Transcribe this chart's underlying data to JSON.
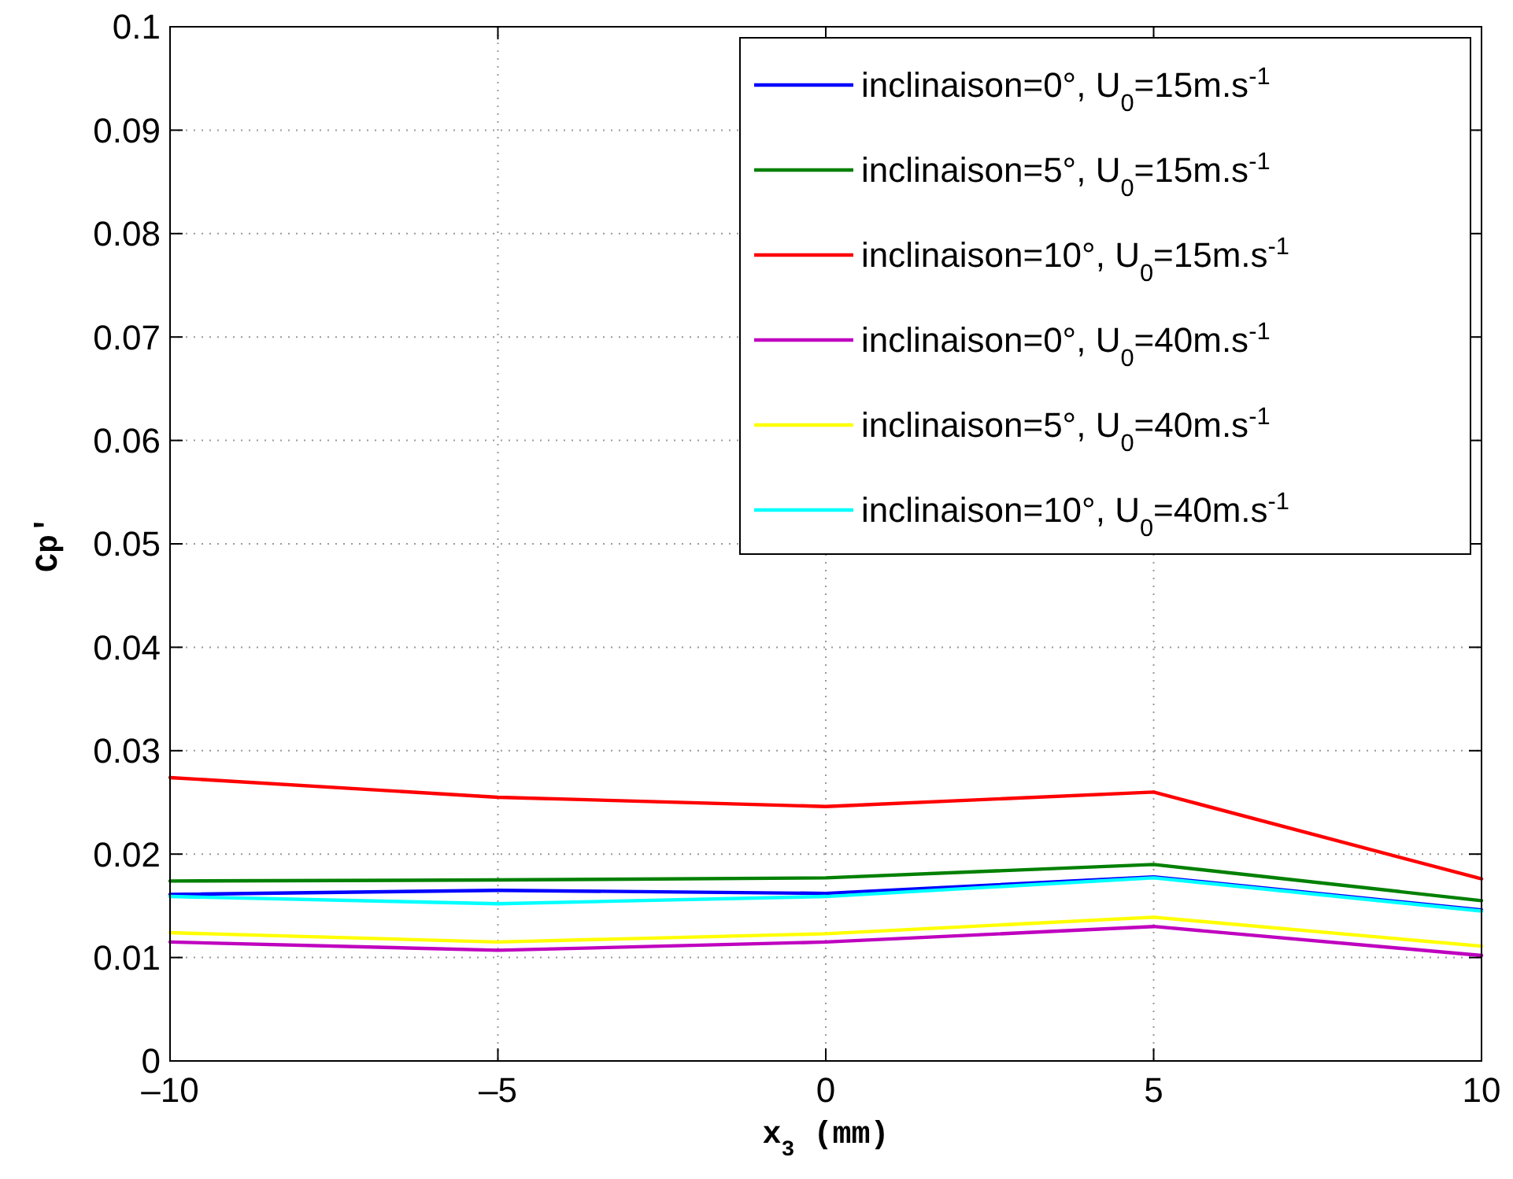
{
  "chart_data": {
    "type": "line",
    "xlabel": "x$_{3}$ (mm)",
    "ylabel": "Cp′",
    "x": [
      -10,
      -5,
      0,
      5,
      10
    ],
    "series": [
      {
        "name": "inclinaison=0°, U$_{0}$=15m.s$^{-1}$",
        "color": "#0000ff",
        "values": [
          0.0161,
          0.0165,
          0.0162,
          0.0178,
          0.0146
        ]
      },
      {
        "name": "inclinaison=5°, U$_{0}$=15m.s$^{-1}$",
        "color": "#008000",
        "values": [
          0.0174,
          0.0175,
          0.0177,
          0.019,
          0.0155
        ]
      },
      {
        "name": "inclinaison=10°, U$_{0}$=15m.s$^{-1}$",
        "color": "#ff0000",
        "values": [
          0.0274,
          0.0255,
          0.0246,
          0.026,
          0.0176
        ]
      },
      {
        "name": "inclinaison=0°, U$_{0}$=40m.s$^{-1}$",
        "color": "#bf00bf",
        "values": [
          0.0115,
          0.0107,
          0.0115,
          0.013,
          0.0102
        ]
      },
      {
        "name": "inclinaison=5°, U$_{0}$=40m.s$^{-1}$",
        "color": "#ffff00",
        "values": [
          0.0124,
          0.0115,
          0.0123,
          0.0139,
          0.0111
        ]
      },
      {
        "name": "inclinaison=10°, U$_{0}$=40m.s$^{-1}$",
        "color": "#00ffff",
        "values": [
          0.0159,
          0.0152,
          0.0159,
          0.0177,
          0.0145
        ]
      }
    ],
    "xlim": [
      -10,
      10
    ],
    "xticks": [
      {
        "value": -10,
        "label": "–10"
      },
      {
        "value": -5,
        "label": "–5"
      },
      0,
      5,
      10
    ],
    "ylim": [
      0,
      0.1
    ],
    "yticks": [
      0,
      0.01,
      0.02,
      0.03,
      0.04,
      0.05,
      0.06,
      0.07,
      0.08,
      0.09,
      0.1
    ],
    "grid": true,
    "legend": "top right",
    "line_style": "solid",
    "marker": "none"
  }
}
